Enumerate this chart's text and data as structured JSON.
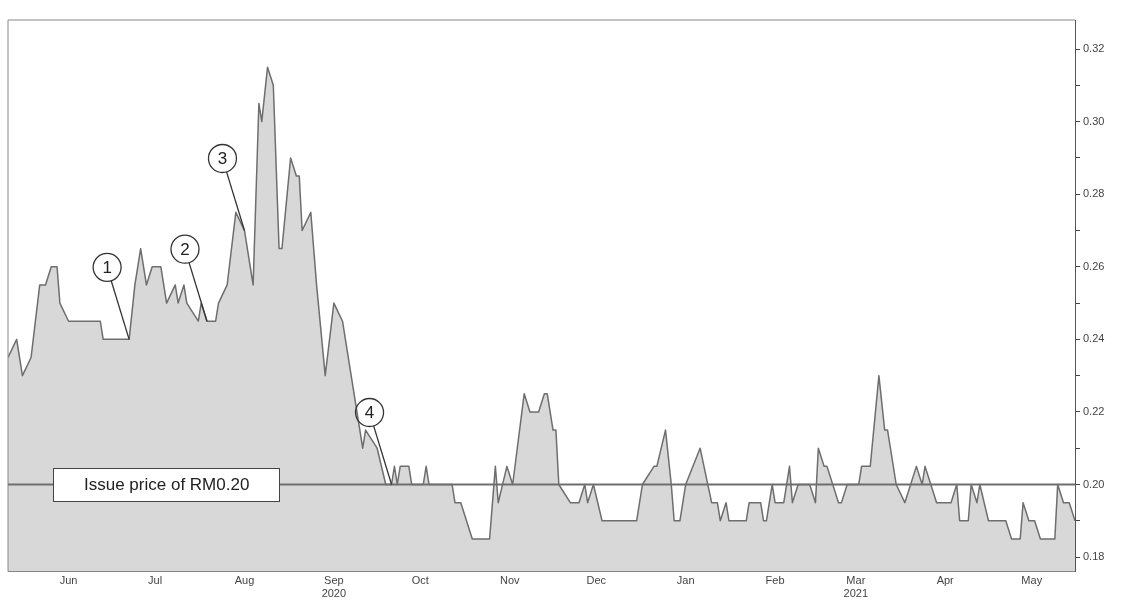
{
  "chart_data": {
    "type": "area",
    "x": [
      "2020-05-25",
      "2020-05-28",
      "2020-05-30",
      "2020-06-02",
      "2020-06-05",
      "2020-06-07",
      "2020-06-09",
      "2020-06-11",
      "2020-06-12",
      "2020-06-15",
      "2020-06-26",
      "2020-06-27",
      "2020-07-06",
      "2020-07-08",
      "2020-07-10",
      "2020-07-12",
      "2020-07-14",
      "2020-07-17",
      "2020-07-19",
      "2020-07-22",
      "2020-07-23",
      "2020-07-25",
      "2020-07-26",
      "2020-07-30",
      "2020-07-31",
      "2020-08-02",
      "2020-08-05",
      "2020-08-06",
      "2020-08-09",
      "2020-08-12",
      "2020-08-15",
      "2020-08-18",
      "2020-08-20",
      "2020-08-21",
      "2020-08-23",
      "2020-08-25",
      "2020-08-27",
      "2020-08-28",
      "2020-08-31",
      "2020-09-02",
      "2020-09-03",
      "2020-09-04",
      "2020-09-07",
      "2020-09-09",
      "2020-09-12",
      "2020-09-15",
      "2020-09-18",
      "2020-09-21",
      "2020-09-25",
      "2020-09-26",
      "2020-09-30",
      "2020-10-03",
      "2020-10-05",
      "2020-10-06",
      "2020-10-07",
      "2020-10-08",
      "2020-10-11",
      "2020-10-12",
      "2020-10-16",
      "2020-10-17",
      "2020-10-18",
      "2020-10-19",
      "2020-10-26",
      "2020-10-27",
      "2020-10-29",
      "2020-11-02",
      "2020-11-08",
      "2020-11-10",
      "2020-11-11",
      "2020-11-14",
      "2020-11-16",
      "2020-11-20",
      "2020-11-22",
      "2020-11-25",
      "2020-11-27",
      "2020-11-28",
      "2020-11-30",
      "2020-12-01",
      "2020-12-02",
      "2020-12-06",
      "2020-12-09",
      "2020-12-11",
      "2020-12-12",
      "2020-12-14",
      "2020-12-17",
      "2020-12-29",
      "2020-12-31",
      "2021-01-04",
      "2021-01-05",
      "2021-01-08",
      "2021-01-10",
      "2021-01-11",
      "2021-01-13",
      "2021-01-15",
      "2021-01-20",
      "2021-01-24",
      "2021-01-26",
      "2021-01-27",
      "2021-01-29",
      "2021-01-30",
      "2021-02-05",
      "2021-02-06",
      "2021-02-10",
      "2021-02-11",
      "2021-02-12",
      "2021-02-14",
      "2021-02-15",
      "2021-02-18",
      "2021-02-20",
      "2021-02-21",
      "2021-02-23",
      "2021-02-27",
      "2021-03-01",
      "2021-03-02",
      "2021-03-04",
      "2021-03-05",
      "2021-03-09",
      "2021-03-10",
      "2021-03-12",
      "2021-03-16",
      "2021-03-17",
      "2021-03-20",
      "2021-03-23",
      "2021-03-25",
      "2021-03-26",
      "2021-03-29",
      "2021-04-01",
      "2021-04-05",
      "2021-04-07",
      "2021-04-08",
      "2021-04-10",
      "2021-04-12",
      "2021-04-17",
      "2021-04-19",
      "2021-04-20",
      "2021-04-23",
      "2021-04-24",
      "2021-04-26",
      "2021-04-27",
      "2021-04-30",
      "2021-05-06",
      "2021-05-08",
      "2021-05-11",
      "2021-05-12",
      "2021-05-14",
      "2021-05-16",
      "2021-05-18",
      "2021-05-23",
      "2021-05-24",
      "2021-05-26",
      "2021-05-28",
      "2021-05-30"
    ],
    "series": [
      {
        "color": "#6e6e6e",
        "values": [
          0.235,
          0.24,
          0.23,
          0.235,
          0.255,
          0.255,
          0.26,
          0.26,
          0.25,
          0.245,
          0.245,
          0.24,
          0.24,
          0.255,
          0.265,
          0.255,
          0.26,
          0.26,
          0.25,
          0.255,
          0.25,
          0.255,
          0.25,
          0.245,
          0.25,
          0.245,
          0.245,
          0.25,
          0.255,
          0.275,
          0.27,
          0.255,
          0.305,
          0.3,
          0.315,
          0.31,
          0.265,
          0.265,
          0.29,
          0.285,
          0.285,
          0.27,
          0.275,
          0.255,
          0.23,
          0.25,
          0.245,
          0.23,
          0.21,
          0.215,
          0.21,
          0.2,
          0.2,
          0.205,
          0.2,
          0.205,
          0.205,
          0.2,
          0.2,
          0.205,
          0.2,
          0.2,
          0.2,
          0.195,
          0.195,
          0.185,
          0.185,
          0.205,
          0.195,
          0.205,
          0.2,
          0.225,
          0.22,
          0.22,
          0.225,
          0.225,
          0.215,
          0.215,
          0.2,
          0.195,
          0.195,
          0.2,
          0.195,
          0.2,
          0.19,
          0.19,
          0.2,
          0.205,
          0.205,
          0.215,
          0.2,
          0.19,
          0.19,
          0.2,
          0.21,
          0.195,
          0.195,
          0.19,
          0.195,
          0.19,
          0.19,
          0.195,
          0.195,
          0.19,
          0.19,
          0.2,
          0.195,
          0.195,
          0.205,
          0.195,
          0.2,
          0.2,
          0.195,
          0.21,
          0.205,
          0.205,
          0.195,
          0.195,
          0.2,
          0.2,
          0.205,
          0.205,
          0.23,
          0.215,
          0.215,
          0.2,
          0.195,
          0.205,
          0.2,
          0.205,
          0.2,
          0.195,
          0.195,
          0.2,
          0.19,
          0.19,
          0.2,
          0.195,
          0.2,
          0.19,
          0.19,
          0.185,
          0.185,
          0.195,
          0.19,
          0.19,
          0.185,
          0.185,
          0.2,
          0.195,
          0.195,
          0.19
        ]
      }
    ],
    "xlim": [
      "2020-05-25",
      "2021-05-30"
    ],
    "xticks": [
      {
        "value": "2020-06-15",
        "label": "Jun"
      },
      {
        "value": "2020-07-15",
        "label": "Jul"
      },
      {
        "value": "2020-08-15",
        "label": "Aug"
      },
      {
        "value": "2020-09-15",
        "label": "Sep 2020"
      },
      {
        "value": "2020-10-15",
        "label": "Oct"
      },
      {
        "value": "2020-11-15",
        "label": "Nov"
      },
      {
        "value": "2020-12-15",
        "label": "Dec"
      },
      {
        "value": "2021-01-15",
        "label": "Jan"
      },
      {
        "value": "2021-02-15",
        "label": "Feb"
      },
      {
        "value": "2021-03-15",
        "label": "Mar 2021"
      },
      {
        "value": "2021-04-15",
        "label": "Apr"
      },
      {
        "value": "2021-05-15",
        "label": "May"
      }
    ],
    "ylim": [
      0.176,
      0.328
    ],
    "yticks": [
      0.18,
      {
        "value": 0.19,
        "label": null
      },
      {
        "value": 0.2,
        "label": "0.20"
      },
      {
        "value": 0.21,
        "label": null
      },
      0.22,
      {
        "value": 0.23,
        "label": null
      },
      0.24,
      {
        "value": 0.25,
        "label": null
      },
      0.26,
      {
        "value": 0.27,
        "label": null
      },
      0.28,
      {
        "value": 0.29,
        "label": null
      },
      {
        "value": 0.3,
        "label": "0.30"
      },
      {
        "value": 0.31,
        "label": null
      },
      0.32
    ],
    "ref_lines": [
      {
        "axis": "y",
        "value": 0.2,
        "label": "Issue price of RM0.20",
        "color": "#6e6e6e"
      }
    ],
    "annotations": [
      {
        "text": "1",
        "x": "2020-07-06",
        "y": 0.24
      },
      {
        "text": "2",
        "x": "2020-08-02",
        "y": 0.245
      },
      {
        "text": "3",
        "x": "2020-08-15",
        "y": 0.27
      },
      {
        "text": "4",
        "x": "2020-10-05",
        "y": 0.2
      }
    ],
    "grid": false,
    "legend": false
  }
}
